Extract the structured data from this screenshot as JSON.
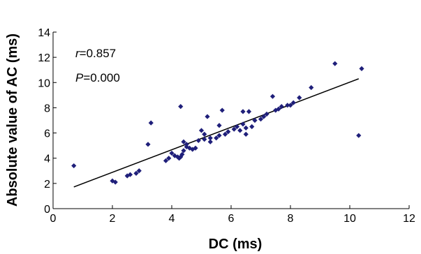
{
  "chart_data": {
    "type": "scatter",
    "xlabel": "DC (ms)",
    "ylabel": "Absolute value of AC (ms)",
    "xlim": [
      0,
      12
    ],
    "ylim": [
      0,
      14
    ],
    "x_ticks": [
      "0",
      "2",
      "4",
      "6",
      "8",
      "10",
      "12"
    ],
    "y_ticks": [
      "0",
      "2",
      "4",
      "6",
      "8",
      "10",
      "12",
      "14"
    ],
    "grid": false,
    "annotations": {
      "r_label": "r",
      "r_value": "=0.857",
      "p_label": "P",
      "p_value": "=0.000"
    },
    "marker_color": "#1f1f7a",
    "trendline": {
      "x": [
        0.7,
        10.3
      ],
      "y": [
        1.72,
        10.3
      ],
      "color": "#000000"
    },
    "points": [
      [
        0.7,
        3.4
      ],
      [
        2.0,
        2.2
      ],
      [
        2.1,
        2.1
      ],
      [
        2.5,
        2.6
      ],
      [
        2.6,
        2.7
      ],
      [
        2.8,
        2.8
      ],
      [
        2.9,
        3.0
      ],
      [
        3.2,
        5.1
      ],
      [
        3.3,
        6.8
      ],
      [
        3.8,
        3.8
      ],
      [
        3.9,
        4.0
      ],
      [
        4.0,
        4.4
      ],
      [
        4.1,
        4.2
      ],
      [
        4.2,
        4.1
      ],
      [
        4.25,
        4.0
      ],
      [
        4.3,
        4.1
      ],
      [
        4.3,
        8.1
      ],
      [
        4.35,
        4.3
      ],
      [
        4.4,
        5.3
      ],
      [
        4.4,
        4.6
      ],
      [
        4.5,
        4.9
      ],
      [
        4.5,
        5.1
      ],
      [
        4.6,
        4.8
      ],
      [
        4.7,
        4.7
      ],
      [
        4.8,
        4.8
      ],
      [
        4.9,
        5.4
      ],
      [
        5.0,
        6.2
      ],
      [
        5.1,
        5.9
      ],
      [
        5.1,
        5.5
      ],
      [
        5.2,
        7.3
      ],
      [
        5.3,
        5.6
      ],
      [
        5.3,
        5.3
      ],
      [
        5.5,
        5.6
      ],
      [
        5.6,
        5.8
      ],
      [
        5.6,
        6.6
      ],
      [
        5.7,
        7.8
      ],
      [
        5.8,
        5.9
      ],
      [
        5.9,
        6.1
      ],
      [
        6.1,
        6.3
      ],
      [
        6.2,
        6.5
      ],
      [
        6.3,
        6.2
      ],
      [
        6.4,
        6.7
      ],
      [
        6.4,
        7.7
      ],
      [
        6.5,
        6.4
      ],
      [
        6.5,
        5.9
      ],
      [
        6.6,
        7.7
      ],
      [
        6.7,
        6.5
      ],
      [
        6.8,
        7.0
      ],
      [
        7.0,
        7.1
      ],
      [
        7.1,
        7.3
      ],
      [
        7.2,
        7.5
      ],
      [
        7.4,
        8.9
      ],
      [
        7.5,
        7.8
      ],
      [
        7.6,
        7.9
      ],
      [
        7.7,
        8.1
      ],
      [
        7.9,
        8.2
      ],
      [
        8.0,
        8.2
      ],
      [
        8.1,
        8.4
      ],
      [
        8.3,
        8.8
      ],
      [
        8.7,
        9.6
      ],
      [
        9.5,
        11.5
      ],
      [
        10.3,
        5.8
      ],
      [
        10.4,
        11.1
      ]
    ]
  }
}
